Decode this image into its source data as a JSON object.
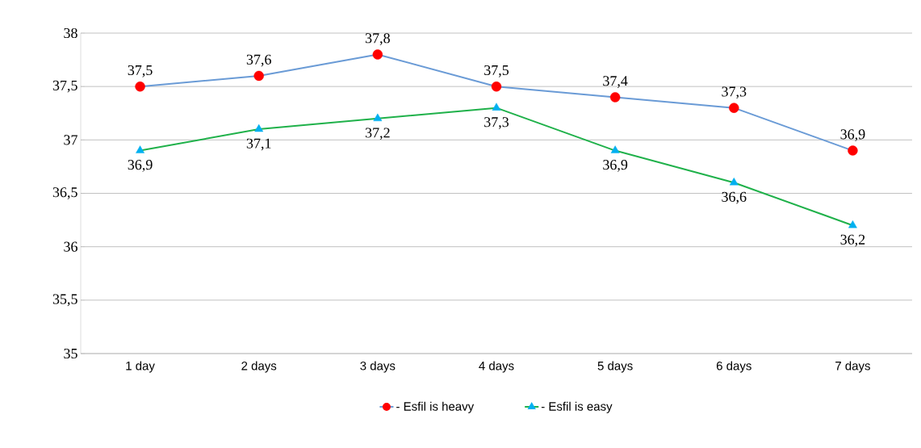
{
  "chart_data": {
    "type": "line",
    "categories": [
      "1 day",
      "2 days",
      "3 days",
      "4 days",
      "5 days",
      "6 days",
      "7 days"
    ],
    "ylim": [
      35,
      38
    ],
    "yticks": [
      35,
      {
        "value": 35.5,
        "label": "35,5"
      },
      36,
      {
        "value": 36.5,
        "label": "36,5"
      },
      37,
      {
        "value": 37.5,
        "label": "37,5"
      },
      38
    ],
    "grid": "y",
    "legend": "bottom",
    "line_style": "solid",
    "series": [
      {
        "name": "- Esfil is heavy",
        "color": "#6a9bd6",
        "marker": "circle",
        "colors": [
          "#ff0000",
          "#ff0000",
          "#ff0000",
          "#ff0000",
          "#ff0000",
          "#ff0000",
          "#ff0000"
        ],
        "values": [
          37.5,
          37.6,
          37.8,
          37.5,
          37.4,
          37.3,
          36.9
        ],
        "value_labels": [
          "37,5",
          "37,6",
          "37,8",
          "37,5",
          "37,4",
          "37,3",
          "36,9"
        ]
      },
      {
        "name": "- Esfil is easy",
        "color": "#1fb14a",
        "marker": "triangle",
        "colors": [
          "#00b0f0",
          "#00b0f0",
          "#00b0f0",
          "#00b0f0",
          "#00b0f0",
          "#00b0f0",
          "#00b0f0"
        ],
        "values": [
          36.9,
          37.1,
          37.2,
          37.3,
          36.9,
          36.6,
          36.2
        ],
        "value_labels": [
          "36,9",
          "37,1",
          "37,2",
          "37,3",
          "36,9",
          "36,6",
          "36,2"
        ]
      }
    ]
  }
}
